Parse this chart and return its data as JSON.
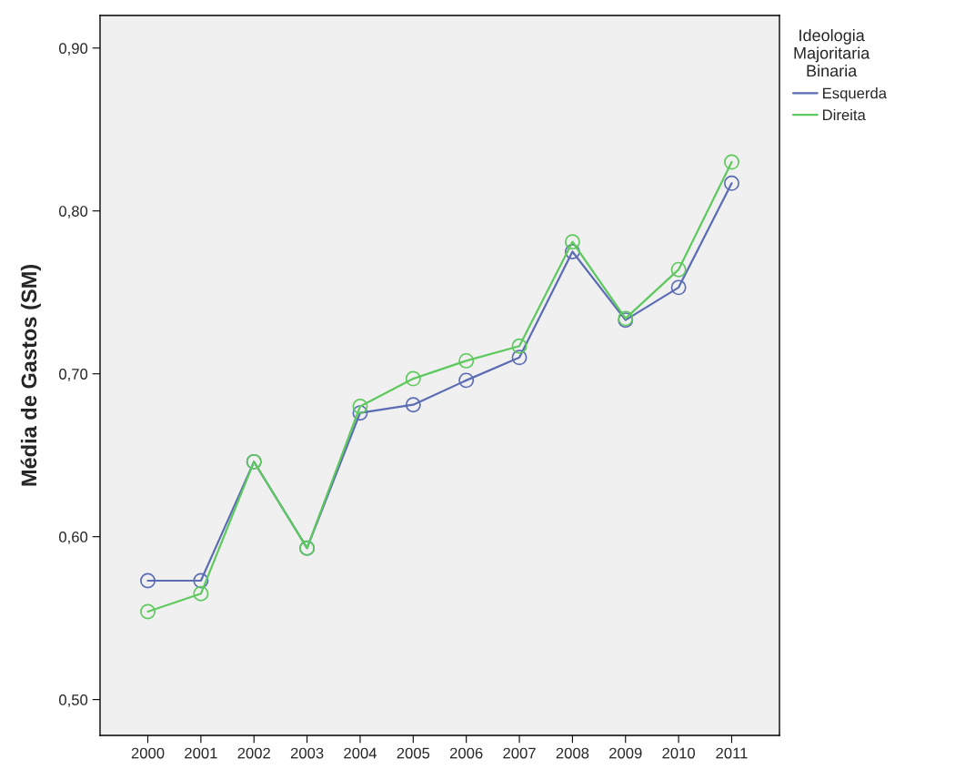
{
  "chart_data": {
    "type": "line",
    "ylabel": "Média de Gastos (SM)",
    "legend_title": "Ideologia\nMajoritaria\nBinaria",
    "categories": [
      "2000",
      "2001",
      "2002",
      "2003",
      "2004",
      "2005",
      "2006",
      "2007",
      "2008",
      "2009",
      "2010",
      "2011"
    ],
    "series": [
      {
        "name": "Esquerda",
        "color": "#5b6cb4",
        "values": [
          0.573,
          0.573,
          0.646,
          0.593,
          0.676,
          0.681,
          0.696,
          0.71,
          0.775,
          0.733,
          0.753,
          0.817
        ]
      },
      {
        "name": "Direita",
        "color": "#5ec95e",
        "values": [
          0.554,
          0.565,
          0.646,
          0.593,
          0.68,
          0.697,
          0.708,
          0.717,
          0.781,
          0.734,
          0.764,
          0.83
        ]
      }
    ],
    "ylim": [
      0.478,
      0.92
    ],
    "yticks": [
      {
        "value": 0.5,
        "label": "0,50"
      },
      {
        "value": 0.6,
        "label": "0,60"
      },
      {
        "value": 0.7,
        "label": "0,70"
      },
      {
        "value": 0.8,
        "label": "0,80"
      },
      {
        "value": 0.9,
        "label": "0,90"
      }
    ],
    "grid": false,
    "legend": "top right",
    "marker": "circle",
    "line_style": "solid"
  }
}
